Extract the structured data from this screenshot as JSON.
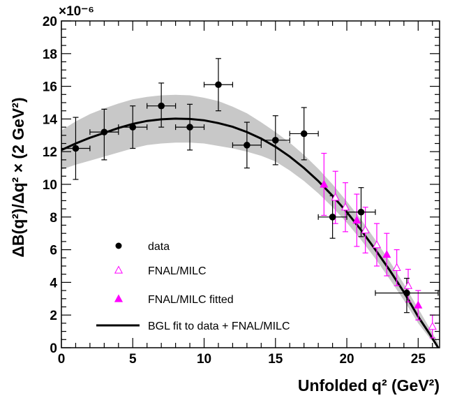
{
  "chart_data": {
    "type": "scatter",
    "xlabel": "Unfolded q² (GeV²)",
    "ylabel": "ΔB(q²)/Δq² × (2 GeV²)",
    "y_multiplier": "×10⁻⁶",
    "xlim": [
      0,
      26.5
    ],
    "ylim": [
      0,
      20
    ],
    "x_ticks": [
      0,
      5,
      10,
      15,
      20,
      25
    ],
    "y_ticks": [
      0,
      2,
      4,
      6,
      8,
      10,
      12,
      14,
      16,
      18,
      20
    ],
    "grid": false,
    "legend_position": "bottom-left",
    "colors": {
      "data": "#000000",
      "lattice": "#ff00ff",
      "band": "#c8c8c8",
      "fit": "#000000"
    },
    "series": [
      {
        "name": "data",
        "marker": "filled-circle",
        "points": [
          {
            "x": 1,
            "y": 12.2,
            "xerr": 1.0,
            "yerr_up": 1.9,
            "yerr_down": 1.9
          },
          {
            "x": 3,
            "y": 13.2,
            "xerr": 1.0,
            "yerr_up": 1.4,
            "yerr_down": 1.7
          },
          {
            "x": 5,
            "y": 13.5,
            "xerr": 1.0,
            "yerr_up": 1.3,
            "yerr_down": 1.3
          },
          {
            "x": 7,
            "y": 14.8,
            "xerr": 1.0,
            "yerr_up": 1.4,
            "yerr_down": 1.3
          },
          {
            "x": 9,
            "y": 13.5,
            "xerr": 1.0,
            "yerr_up": 1.4,
            "yerr_down": 1.4
          },
          {
            "x": 11,
            "y": 16.1,
            "xerr": 1.0,
            "yerr_up": 1.6,
            "yerr_down": 1.6
          },
          {
            "x": 13,
            "y": 12.4,
            "xerr": 1.0,
            "yerr_up": 1.4,
            "yerr_down": 1.4
          },
          {
            "x": 15,
            "y": 12.7,
            "xerr": 1.0,
            "yerr_up": 1.5,
            "yerr_down": 1.5
          },
          {
            "x": 17,
            "y": 13.1,
            "xerr": 1.0,
            "yerr_up": 1.6,
            "yerr_down": 1.6
          },
          {
            "x": 19,
            "y": 8.0,
            "xerr": 1.0,
            "yerr_up": 1.3,
            "yerr_down": 1.3
          },
          {
            "x": 21,
            "y": 8.3,
            "xerr": 1.0,
            "yerr_up": 1.5,
            "yerr_down": 1.5
          },
          {
            "x": 24.2,
            "y": 3.35,
            "xerr": 2.2,
            "yerr_up": 0.9,
            "yerr_down": 1.2
          }
        ]
      },
      {
        "name": "FNAL/MILC",
        "marker": "open-triangle",
        "points": [
          {
            "x": 19.2,
            "y": 9.2,
            "yerr": 1.6
          },
          {
            "x": 19.9,
            "y": 8.6,
            "yerr": 1.5
          },
          {
            "x": 21.3,
            "y": 7.2,
            "yerr": 1.4
          },
          {
            "x": 22.1,
            "y": 6.3,
            "yerr": 1.3
          },
          {
            "x": 23.5,
            "y": 4.9,
            "yerr": 1.1
          },
          {
            "x": 24.3,
            "y": 3.8,
            "yerr": 1.0
          },
          {
            "x": 26.0,
            "y": 1.3,
            "yerr": 0.7
          }
        ]
      },
      {
        "name": "FNAL/MILC fitted",
        "marker": "filled-triangle",
        "points": [
          {
            "x": 18.4,
            "y": 10.0,
            "yerr": 1.9
          },
          {
            "x": 20.7,
            "y": 7.8,
            "yerr": 1.6
          },
          {
            "x": 22.8,
            "y": 5.7,
            "yerr": 1.3
          },
          {
            "x": 25.0,
            "y": 2.6,
            "yerr": 0.9
          }
        ]
      },
      {
        "name": "BGL fit to data + FNAL/MILC",
        "type": "line",
        "x": [
          0,
          1,
          2,
          3,
          4,
          5,
          6,
          7,
          8,
          9,
          10,
          11,
          12,
          13,
          14,
          15,
          16,
          17,
          18,
          19,
          20,
          21,
          22,
          23,
          24,
          25,
          25.8,
          26.4
        ],
        "y": [
          12.1,
          12.5,
          12.85,
          13.15,
          13.45,
          13.7,
          13.88,
          13.98,
          14.02,
          14.0,
          13.92,
          13.75,
          13.52,
          13.2,
          12.8,
          12.3,
          11.7,
          11.0,
          10.2,
          9.3,
          8.3,
          7.2,
          6.0,
          4.75,
          3.4,
          1.9,
          0.85,
          0.0
        ],
        "band_upper": [
          13.3,
          13.85,
          14.3,
          14.65,
          14.95,
          15.2,
          15.35,
          15.45,
          15.48,
          15.45,
          15.3,
          15.1,
          14.75,
          14.35,
          13.8,
          13.2,
          12.55,
          11.8,
          10.95,
          10.0,
          8.95,
          7.85,
          6.6,
          5.3,
          3.9,
          2.4,
          1.2,
          0.3
        ],
        "band_lower": [
          10.9,
          11.2,
          11.45,
          11.7,
          11.95,
          12.2,
          12.4,
          12.5,
          12.55,
          12.55,
          12.5,
          12.35,
          12.2,
          12.0,
          11.75,
          11.4,
          10.85,
          10.2,
          9.45,
          8.6,
          7.65,
          6.6,
          5.45,
          4.2,
          2.9,
          1.5,
          0.6,
          0.0
        ]
      }
    ]
  }
}
